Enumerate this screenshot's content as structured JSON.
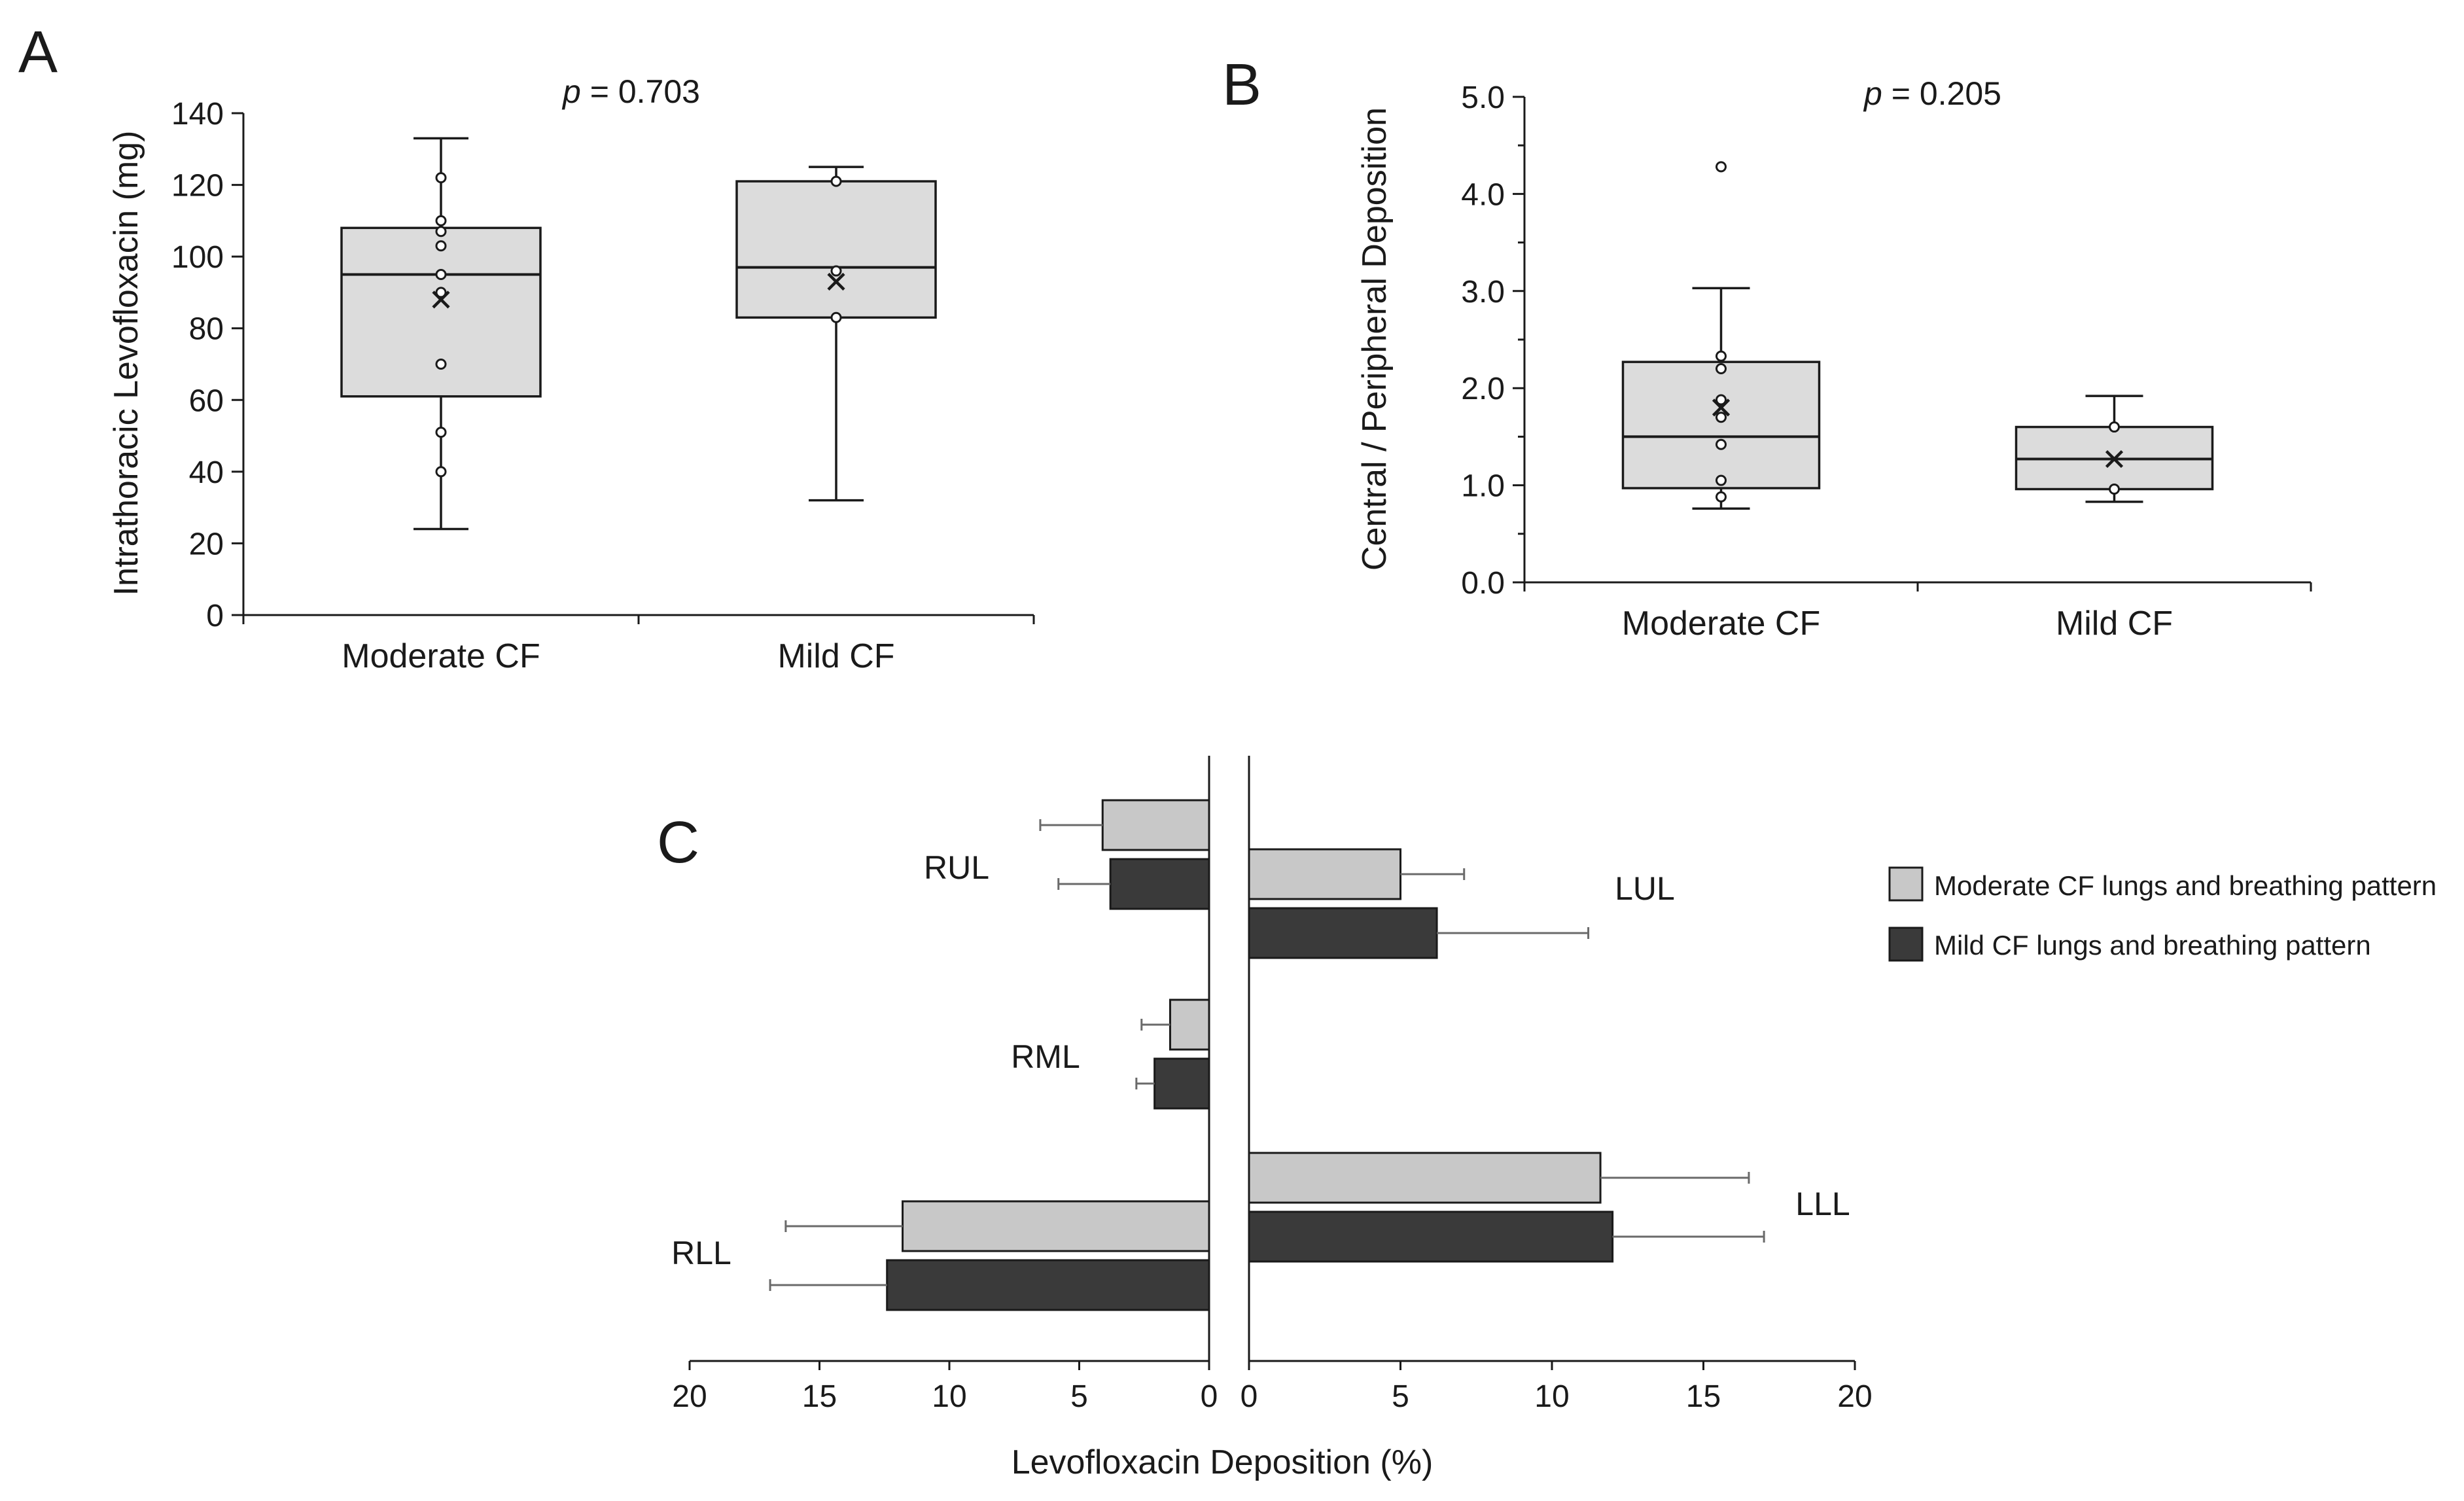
{
  "chart_data": [
    {
      "panel": "A",
      "type": "box",
      "ylabel": "Intrathoracic Levofloxacin (mg)",
      "ylim": [
        0,
        140
      ],
      "yticks": [
        0,
        20,
        40,
        60,
        80,
        100,
        120,
        140
      ],
      "categories": [
        "Moderate CF",
        "Mild CF"
      ],
      "annotation": {
        "p_label": "p",
        "p_text": " = 0.703"
      },
      "boxes": [
        {
          "category": "Moderate CF",
          "min": 24,
          "q1": 61,
          "median": 95,
          "q3": 108,
          "max": 133,
          "mean": 88,
          "points": [
            122,
            110,
            107,
            103,
            95,
            90,
            70,
            51,
            40
          ]
        },
        {
          "category": "Mild CF",
          "min": 32,
          "q1": 83,
          "median": 97,
          "q3": 121,
          "max": 125,
          "mean": 93,
          "points": [
            121,
            96,
            83
          ]
        }
      ]
    },
    {
      "panel": "B",
      "type": "box",
      "ylabel": "Central / Peripheral Deposition",
      "ylim": [
        0,
        5
      ],
      "yticks": [
        "0.0",
        "1.0",
        "2.0",
        "3.0",
        "4.0",
        "5.0"
      ],
      "categories": [
        "Moderate CF",
        "Mild CF"
      ],
      "annotation": {
        "p_label": "p",
        "p_text": " = 0.205"
      },
      "boxes": [
        {
          "category": "Moderate CF",
          "min": 0.76,
          "q1": 0.97,
          "median": 1.5,
          "q3": 2.27,
          "max": 3.03,
          "mean": 1.8,
          "points": [
            4.28,
            2.33,
            2.2,
            1.88,
            1.7,
            1.42,
            1.05,
            0.88
          ]
        },
        {
          "category": "Mild CF",
          "min": 0.83,
          "q1": 0.96,
          "median": 1.27,
          "q3": 1.6,
          "max": 1.92,
          "mean": 1.27,
          "points": [
            1.6,
            0.96
          ]
        }
      ]
    },
    {
      "panel": "C",
      "type": "bar",
      "orientation": "horizontal-butterfly",
      "xlabel": "Levofloxacin Deposition (%)",
      "xlim": [
        0,
        20
      ],
      "xticks": [
        20,
        15,
        10,
        5,
        0
      ],
      "series": [
        {
          "name": "Moderate CF lungs and breathing pattern",
          "color": "#c8c8c8"
        },
        {
          "name": "Mild CF lungs and breathing pattern",
          "color": "#3a3a3a"
        }
      ],
      "right_lung": [
        {
          "lobe": "RUL",
          "moderate": 4.1,
          "moderate_err": 2.4,
          "mild": 3.8,
          "mild_err": 2.0
        },
        {
          "lobe": "RML",
          "moderate": 1.5,
          "moderate_err": 1.1,
          "mild": 2.1,
          "mild_err": 0.7
        },
        {
          "lobe": "RLL",
          "moderate": 11.8,
          "moderate_err": 4.5,
          "mild": 12.4,
          "mild_err": 4.5
        }
      ],
      "left_lung": [
        {
          "lobe": "LUL",
          "moderate": 5.0,
          "moderate_err": 2.1,
          "mild": 6.2,
          "mild_err": 5.0
        },
        {
          "lobe": "LLL",
          "moderate": 11.6,
          "moderate_err": 4.9,
          "mild": 12.0,
          "mild_err": 5.0
        }
      ]
    }
  ],
  "panels": {
    "a": "A",
    "b": "B",
    "c": "C"
  }
}
